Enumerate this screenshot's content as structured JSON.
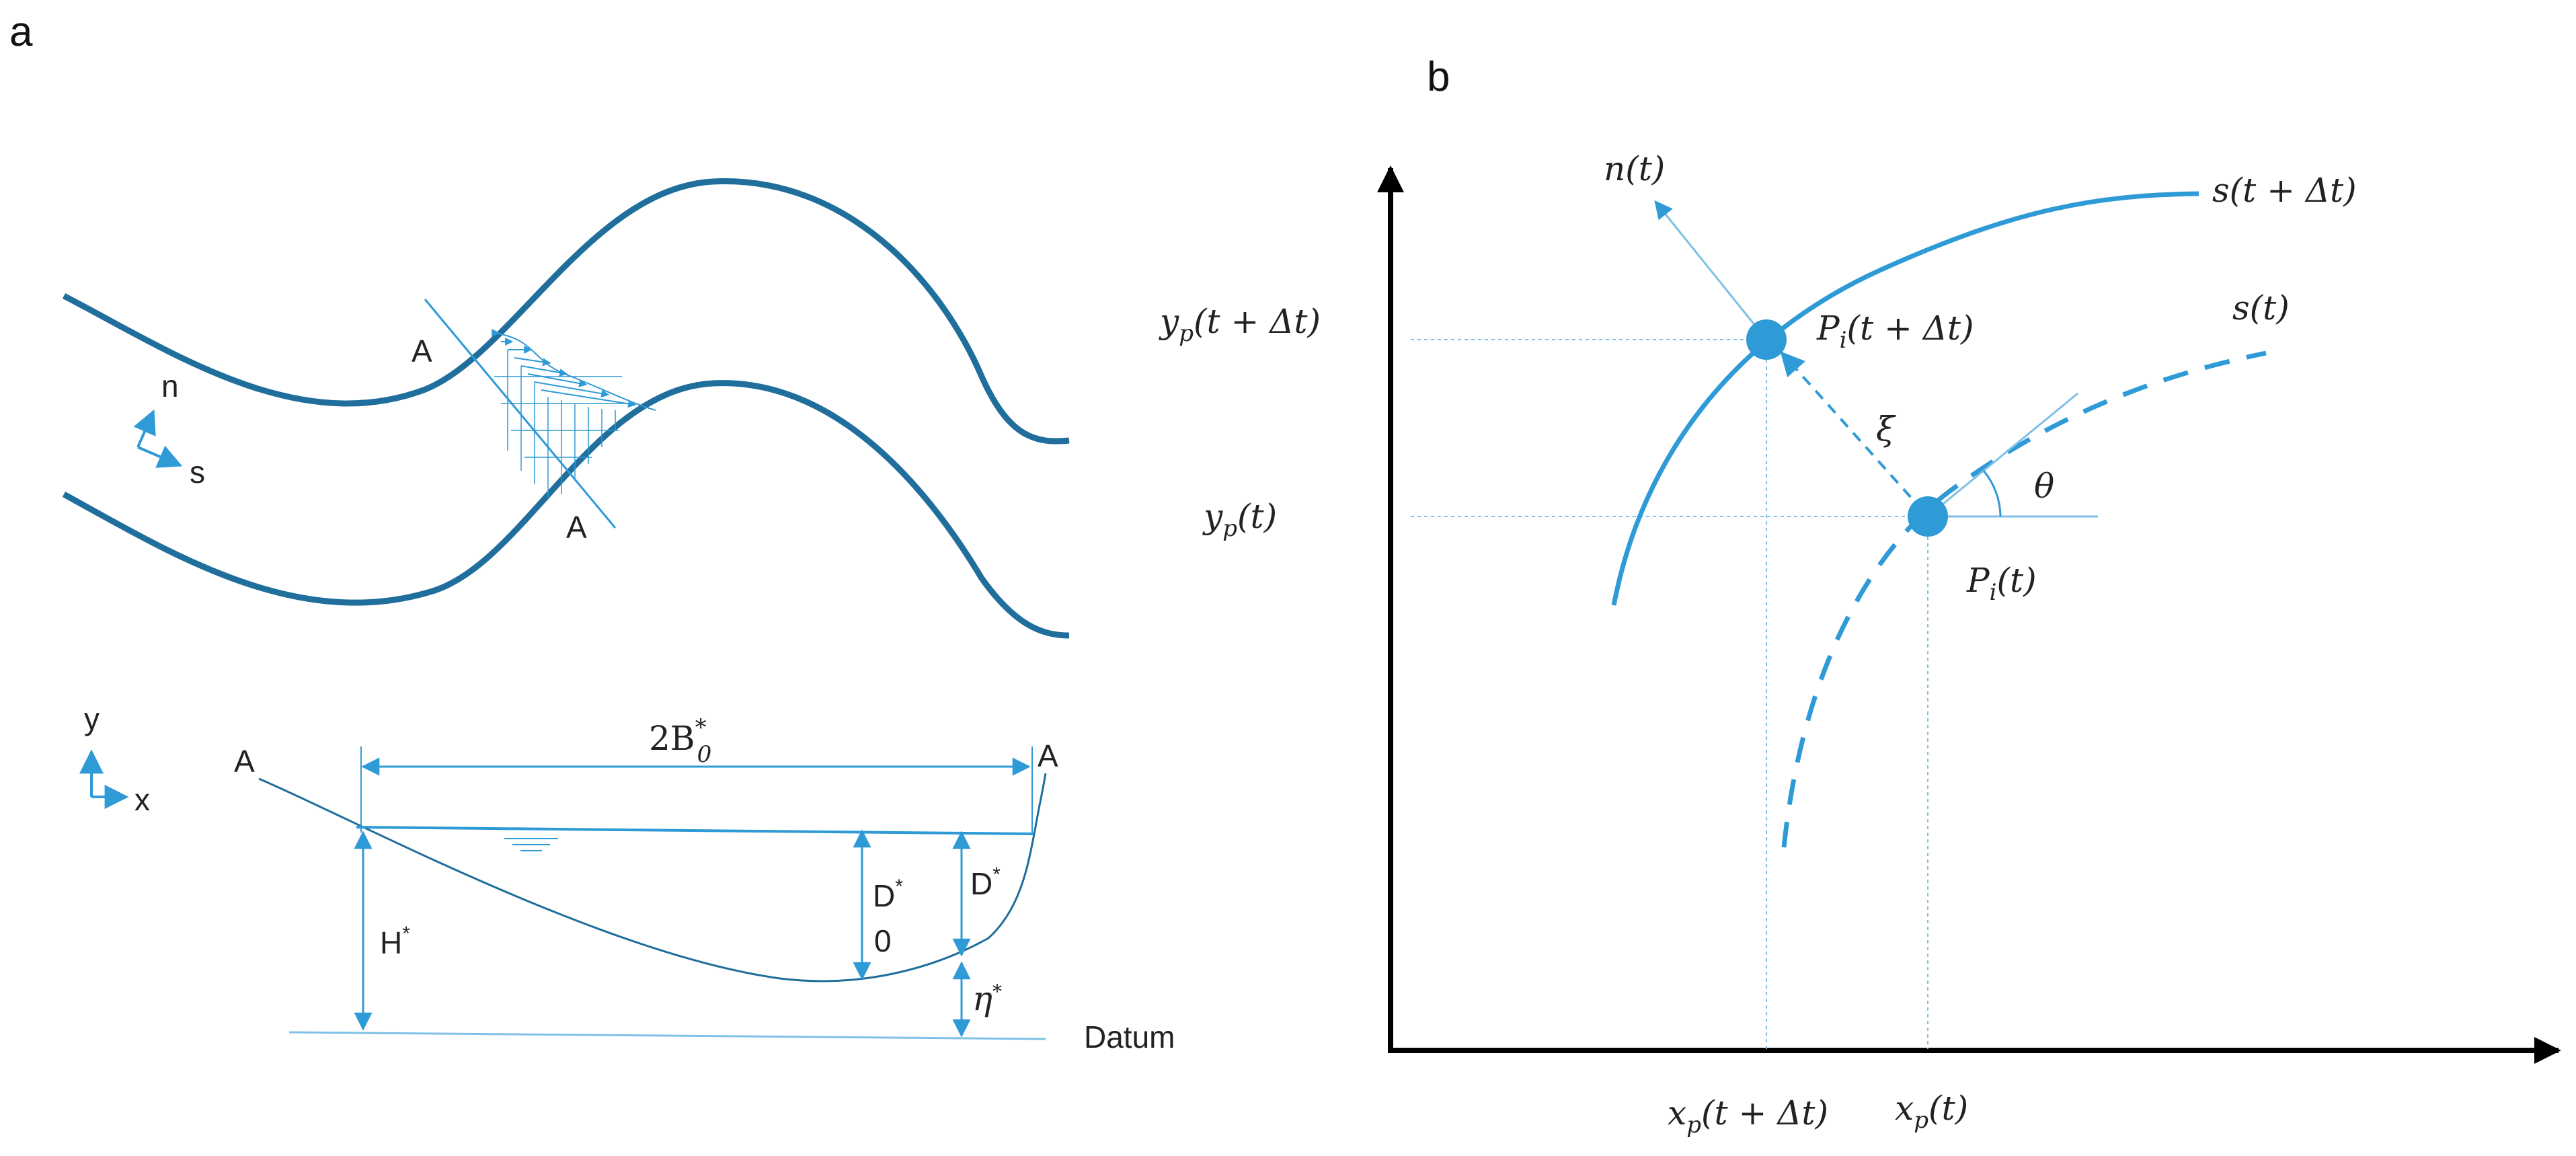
{
  "panel_a": {
    "label": "a",
    "plan_view": {
      "section_label_top": "A",
      "section_label_bottom": "A",
      "axis_n": "n",
      "axis_s": "s"
    },
    "cross_section": {
      "axis_y": "y",
      "axis_x": "x",
      "left_bank": "A",
      "right_bank": "A",
      "width_base": "2B",
      "width_sup": "*",
      "width_sub": "0",
      "H_label": "H",
      "H_sup": "*",
      "D0_label": "D",
      "D0_sup": "*",
      "D0_sub": "0",
      "D_label": "D",
      "D_sup": "*",
      "eta_label": "η",
      "eta_sup": "*",
      "datum": "Datum"
    }
  },
  "panel_b": {
    "label": "b",
    "n_label": "n(t)",
    "s_next_label": "s(t + Δt)",
    "s_label": "s(t)",
    "point_next_label": "P",
    "point_next_sub": "i",
    "point_next_arg": "(t + Δt)",
    "point_label": "P",
    "point_sub": "i",
    "point_arg": "(t)",
    "xi_label": "ξ",
    "theta_label": "θ",
    "yp_next_base": "y",
    "yp_next_sub": "p",
    "yp_next_arg": "(t + Δt)",
    "yp_base": "y",
    "yp_sub": "p",
    "yp_arg": "(t)",
    "xp_next_base": "x",
    "xp_next_sub": "p",
    "xp_next_arg": "(t + Δt)",
    "xp_base": "x",
    "xp_sub": "p",
    "xp_arg": "(t)"
  },
  "colors": {
    "channel": "#1f6e9c",
    "accent": "#2e9ad6",
    "light": "#7ec0e6",
    "axis": "#000000"
  }
}
